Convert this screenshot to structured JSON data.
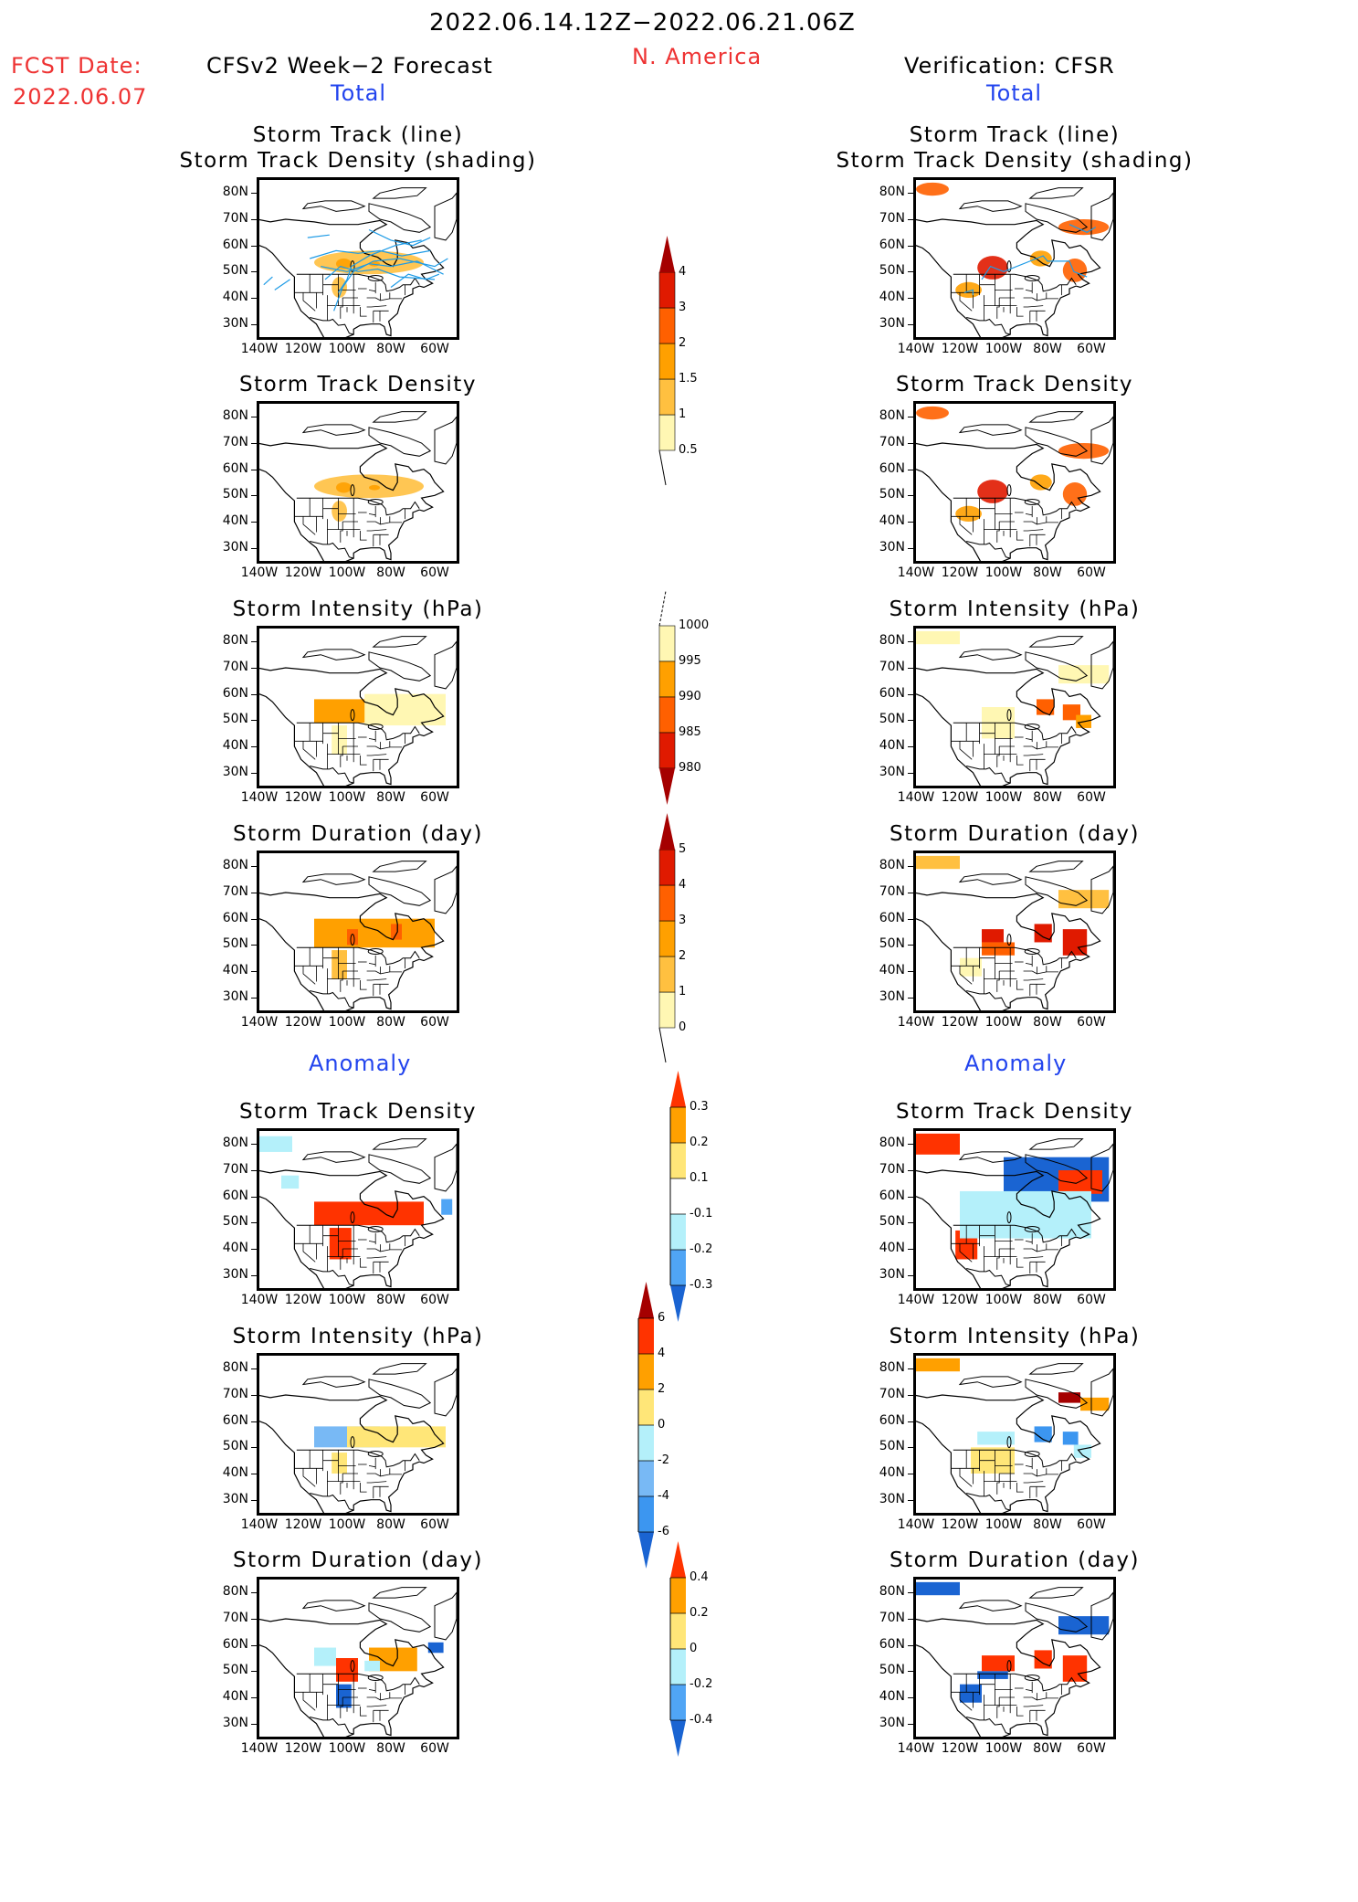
{
  "header": {
    "period": "2022.06.14.12Z−2022.06.21.06Z",
    "region": "N. America",
    "fcst_label": "FCST Date:",
    "fcst_date": "2022.06.07",
    "left_title": "CFSv2 Week−2 Forecast",
    "right_title": "Verification: CFSR",
    "total_label": "Total",
    "anomaly_label": "Anomaly"
  },
  "axis": {
    "lat_ticks": [
      "80N",
      "70N",
      "60N",
      "50N",
      "40N",
      "30N"
    ],
    "lon_ticks": [
      "140W",
      "120W",
      "100W",
      "80W",
      "60W"
    ]
  },
  "panels": {
    "track_title_1": "Storm Track (line)",
    "track_title_2": "Storm Track Density (shading)",
    "density_title": "Storm Track Density",
    "intensity_title": "Storm Intensity (hPa)",
    "duration_title": "Storm Duration (day)"
  },
  "chart_data": [
    {
      "type": "heatmap",
      "title": "Storm Track Density (Total)",
      "colorbar_levels": [
        "0.5",
        "1",
        "1.5",
        "2",
        "3",
        "4"
      ],
      "colors": [
        "#fff7b3",
        "#ffc040",
        "#ffa000",
        "#ff6000",
        "#e01a00",
        "#a50000"
      ],
      "forecast_regions": [
        {
          "lon": [
            -115,
            -65
          ],
          "lat": [
            49,
            58
          ],
          "level": 1
        },
        {
          "lon": [
            -107,
            -100
          ],
          "lat": [
            40,
            48
          ],
          "level": 1
        },
        {
          "lon": [
            -105,
            -98
          ],
          "lat": [
            51,
            55
          ],
          "level": 2
        },
        {
          "lon": [
            -90,
            -85
          ],
          "lat": [
            52,
            54
          ],
          "level": 2
        }
      ],
      "verification_regions": [
        {
          "lon": [
            -140,
            -125
          ],
          "lat": [
            79,
            84
          ],
          "level": 3
        },
        {
          "lon": [
            -75,
            -52
          ],
          "lat": [
            64,
            70
          ],
          "level": 3
        },
        {
          "lon": [
            -112,
            -98
          ],
          "lat": [
            47,
            56
          ],
          "level": 4
        },
        {
          "lon": [
            -88,
            -78
          ],
          "lat": [
            52,
            58
          ],
          "level": 2
        },
        {
          "lon": [
            -73,
            -62
          ],
          "lat": [
            46,
            55
          ],
          "level": 3
        },
        {
          "lon": [
            -122,
            -110
          ],
          "lat": [
            40,
            46
          ],
          "level": 2
        }
      ]
    },
    {
      "type": "heatmap",
      "title": "Storm Intensity (hPa) (Total)",
      "colorbar_levels": [
        "1000",
        "995",
        "990",
        "985",
        "980"
      ],
      "colors": [
        "#fff7b3",
        "#ffa000",
        "#ff6000",
        "#e01a00",
        "#a50000"
      ],
      "forecast_regions": [
        {
          "lon": [
            -115,
            -85
          ],
          "lat": [
            49,
            58
          ],
          "level": 1
        },
        {
          "lon": [
            -92,
            -55
          ],
          "lat": [
            48,
            60
          ],
          "level": 0
        },
        {
          "lon": [
            -107,
            -100
          ],
          "lat": [
            37,
            48
          ],
          "level": 0
        }
      ],
      "verification_regions": [
        {
          "lon": [
            -140,
            -120
          ],
          "lat": [
            79,
            84
          ],
          "level": 0
        },
        {
          "lon": [
            -75,
            -52
          ],
          "lat": [
            64,
            71
          ],
          "level": 0
        },
        {
          "lon": [
            -110,
            -95
          ],
          "lat": [
            43,
            55
          ],
          "level": 0
        },
        {
          "lon": [
            -85,
            -77
          ],
          "lat": [
            52,
            58
          ],
          "level": 2
        },
        {
          "lon": [
            -73,
            -65
          ],
          "lat": [
            50,
            56
          ],
          "level": 2
        },
        {
          "lon": [
            -67,
            -60
          ],
          "lat": [
            47,
            52
          ],
          "level": 1
        }
      ]
    },
    {
      "type": "heatmap",
      "title": "Storm Duration (day) (Total)",
      "colorbar_levels": [
        "0",
        "1",
        "2",
        "3",
        "4",
        "5"
      ],
      "colors": [
        "#fff7b3",
        "#ffc040",
        "#ffa000",
        "#ff6000",
        "#e01a00",
        "#a50000"
      ],
      "forecast_regions": [
        {
          "lon": [
            -115,
            -60
          ],
          "lat": [
            49,
            60
          ],
          "level": 2
        },
        {
          "lon": [
            -100,
            -95
          ],
          "lat": [
            50,
            56
          ],
          "level": 3
        },
        {
          "lon": [
            -80,
            -75
          ],
          "lat": [
            52,
            58
          ],
          "level": 3
        },
        {
          "lon": [
            -107,
            -100
          ],
          "lat": [
            37,
            48
          ],
          "level": 1
        }
      ],
      "verification_regions": [
        {
          "lon": [
            -140,
            -120
          ],
          "lat": [
            79,
            84
          ],
          "level": 1
        },
        {
          "lon": [
            -75,
            -52
          ],
          "lat": [
            64,
            71
          ],
          "level": 1
        },
        {
          "lon": [
            -110,
            -100
          ],
          "lat": [
            51,
            56
          ],
          "level": 4
        },
        {
          "lon": [
            -110,
            -95
          ],
          "lat": [
            46,
            51
          ],
          "level": 3
        },
        {
          "lon": [
            -86,
            -78
          ],
          "lat": [
            51,
            58
          ],
          "level": 4
        },
        {
          "lon": [
            -73,
            -62
          ],
          "lat": [
            46,
            56
          ],
          "level": 4
        },
        {
          "lon": [
            -120,
            -110
          ],
          "lat": [
            38,
            45
          ],
          "level": 0
        }
      ]
    },
    {
      "type": "heatmap",
      "title": "Storm Track Density (Anomaly)",
      "colorbar_levels": [
        "-0.3",
        "-0.2",
        "-0.1",
        "0.1",
        "0.2",
        "0.3"
      ],
      "colors": [
        "#1a64d2",
        "#50a5f5",
        "#b4f0fa",
        "#ffffff",
        "#ffe678",
        "#ffa000",
        "#ff3300"
      ],
      "forecast_regions": [
        {
          "lon": [
            -140,
            -125
          ],
          "lat": [
            77,
            83
          ],
          "level": 2
        },
        {
          "lon": [
            -130,
            -122
          ],
          "lat": [
            63,
            68
          ],
          "level": 2
        },
        {
          "lon": [
            -115,
            -65
          ],
          "lat": [
            49,
            58
          ],
          "level": 6
        },
        {
          "lon": [
            -108,
            -98
          ],
          "lat": [
            36,
            48
          ],
          "level": 6
        },
        {
          "lon": [
            -57,
            -52
          ],
          "lat": [
            53,
            59
          ],
          "level": 1
        }
      ],
      "verification_regions": [
        {
          "lon": [
            -140,
            -120
          ],
          "lat": [
            76,
            84
          ],
          "level": 6
        },
        {
          "lon": [
            -100,
            -52
          ],
          "lat": [
            58,
            75
          ],
          "level": 0
        },
        {
          "lon": [
            -75,
            -55
          ],
          "lat": [
            61,
            70
          ],
          "level": 6
        },
        {
          "lon": [
            -110,
            -95
          ],
          "lat": [
            48,
            56
          ],
          "level": 6
        },
        {
          "lon": [
            -122,
            -112
          ],
          "lat": [
            36,
            47
          ],
          "level": 6
        },
        {
          "lon": [
            -85,
            -75
          ],
          "lat": [
            50,
            58
          ],
          "level": 6
        },
        {
          "lon": [
            -72,
            -62
          ],
          "lat": [
            45,
            56
          ],
          "level": 6
        },
        {
          "lon": [
            -120,
            -60
          ],
          "lat": [
            44,
            62
          ],
          "level": 2
        }
      ]
    },
    {
      "type": "heatmap",
      "title": "Storm Intensity (hPa) (Anomaly)",
      "colorbar_levels": [
        "-6",
        "-4",
        "-2",
        "0",
        "2",
        "4",
        "6"
      ],
      "colors": [
        "#1a64d2",
        "#3c96f0",
        "#78b9f5",
        "#b4f0fa",
        "#ffe678",
        "#ffa000",
        "#ff3300",
        "#a50000"
      ],
      "forecast_regions": [
        {
          "lon": [
            -115,
            -85
          ],
          "lat": [
            50,
            58
          ],
          "level": 2
        },
        {
          "lon": [
            -100,
            -55
          ],
          "lat": [
            50,
            58
          ],
          "level": 4
        },
        {
          "lon": [
            -107,
            -100
          ],
          "lat": [
            40,
            48
          ],
          "level": 4
        }
      ],
      "verification_regions": [
        {
          "lon": [
            -140,
            -120
          ],
          "lat": [
            79,
            84
          ],
          "level": 5
        },
        {
          "lon": [
            -75,
            -65
          ],
          "lat": [
            67,
            71
          ],
          "level": 7
        },
        {
          "lon": [
            -65,
            -52
          ],
          "lat": [
            64,
            69
          ],
          "level": 5
        },
        {
          "lon": [
            -112,
            -95
          ],
          "lat": [
            51,
            56
          ],
          "level": 3
        },
        {
          "lon": [
            -115,
            -95
          ],
          "lat": [
            40,
            50
          ],
          "level": 4
        },
        {
          "lon": [
            -86,
            -78
          ],
          "lat": [
            52,
            58
          ],
          "level": 1
        },
        {
          "lon": [
            -73,
            -66
          ],
          "lat": [
            51,
            56
          ],
          "level": 1
        },
        {
          "lon": [
            -68,
            -60
          ],
          "lat": [
            46,
            51
          ],
          "level": 3
        }
      ]
    },
    {
      "type": "heatmap",
      "title": "Storm Duration (day) (Anomaly)",
      "colorbar_levels": [
        "-0.4",
        "-0.2",
        "0",
        "0.2",
        "0.4"
      ],
      "colors": [
        "#1a64d2",
        "#50a5f5",
        "#b4f0fa",
        "#ffe678",
        "#ffa000",
        "#ff3300"
      ],
      "forecast_regions": [
        {
          "lon": [
            -115,
            -105
          ],
          "lat": [
            52,
            59
          ],
          "level": 2
        },
        {
          "lon": [
            -90,
            -68
          ],
          "lat": [
            50,
            59
          ],
          "level": 4
        },
        {
          "lon": [
            -105,
            -95
          ],
          "lat": [
            46,
            55
          ],
          "level": 5
        },
        {
          "lon": [
            -105,
            -98
          ],
          "lat": [
            36,
            45
          ],
          "level": 0
        },
        {
          "lon": [
            -63,
            -56
          ],
          "lat": [
            57,
            61
          ],
          "level": 0
        },
        {
          "lon": [
            -92,
            -85
          ],
          "lat": [
            50,
            54
          ],
          "level": 2
        }
      ],
      "verification_regions": [
        {
          "lon": [
            -140,
            -120
          ],
          "lat": [
            79,
            84
          ],
          "level": 0
        },
        {
          "lon": [
            -75,
            -52
          ],
          "lat": [
            64,
            71
          ],
          "level": 0
        },
        {
          "lon": [
            -110,
            -95
          ],
          "lat": [
            50,
            56
          ],
          "level": 5
        },
        {
          "lon": [
            -112,
            -98
          ],
          "lat": [
            47,
            50
          ],
          "level": 0
        },
        {
          "lon": [
            -120,
            -110
          ],
          "lat": [
            38,
            45
          ],
          "level": 0
        },
        {
          "lon": [
            -86,
            -78
          ],
          "lat": [
            51,
            58
          ],
          "level": 5
        },
        {
          "lon": [
            -73,
            -62
          ],
          "lat": [
            46,
            56
          ],
          "level": 5
        }
      ]
    }
  ],
  "track_lines": {
    "forecast_color": "#1e9be6",
    "verification_color": "#1e9be6"
  }
}
